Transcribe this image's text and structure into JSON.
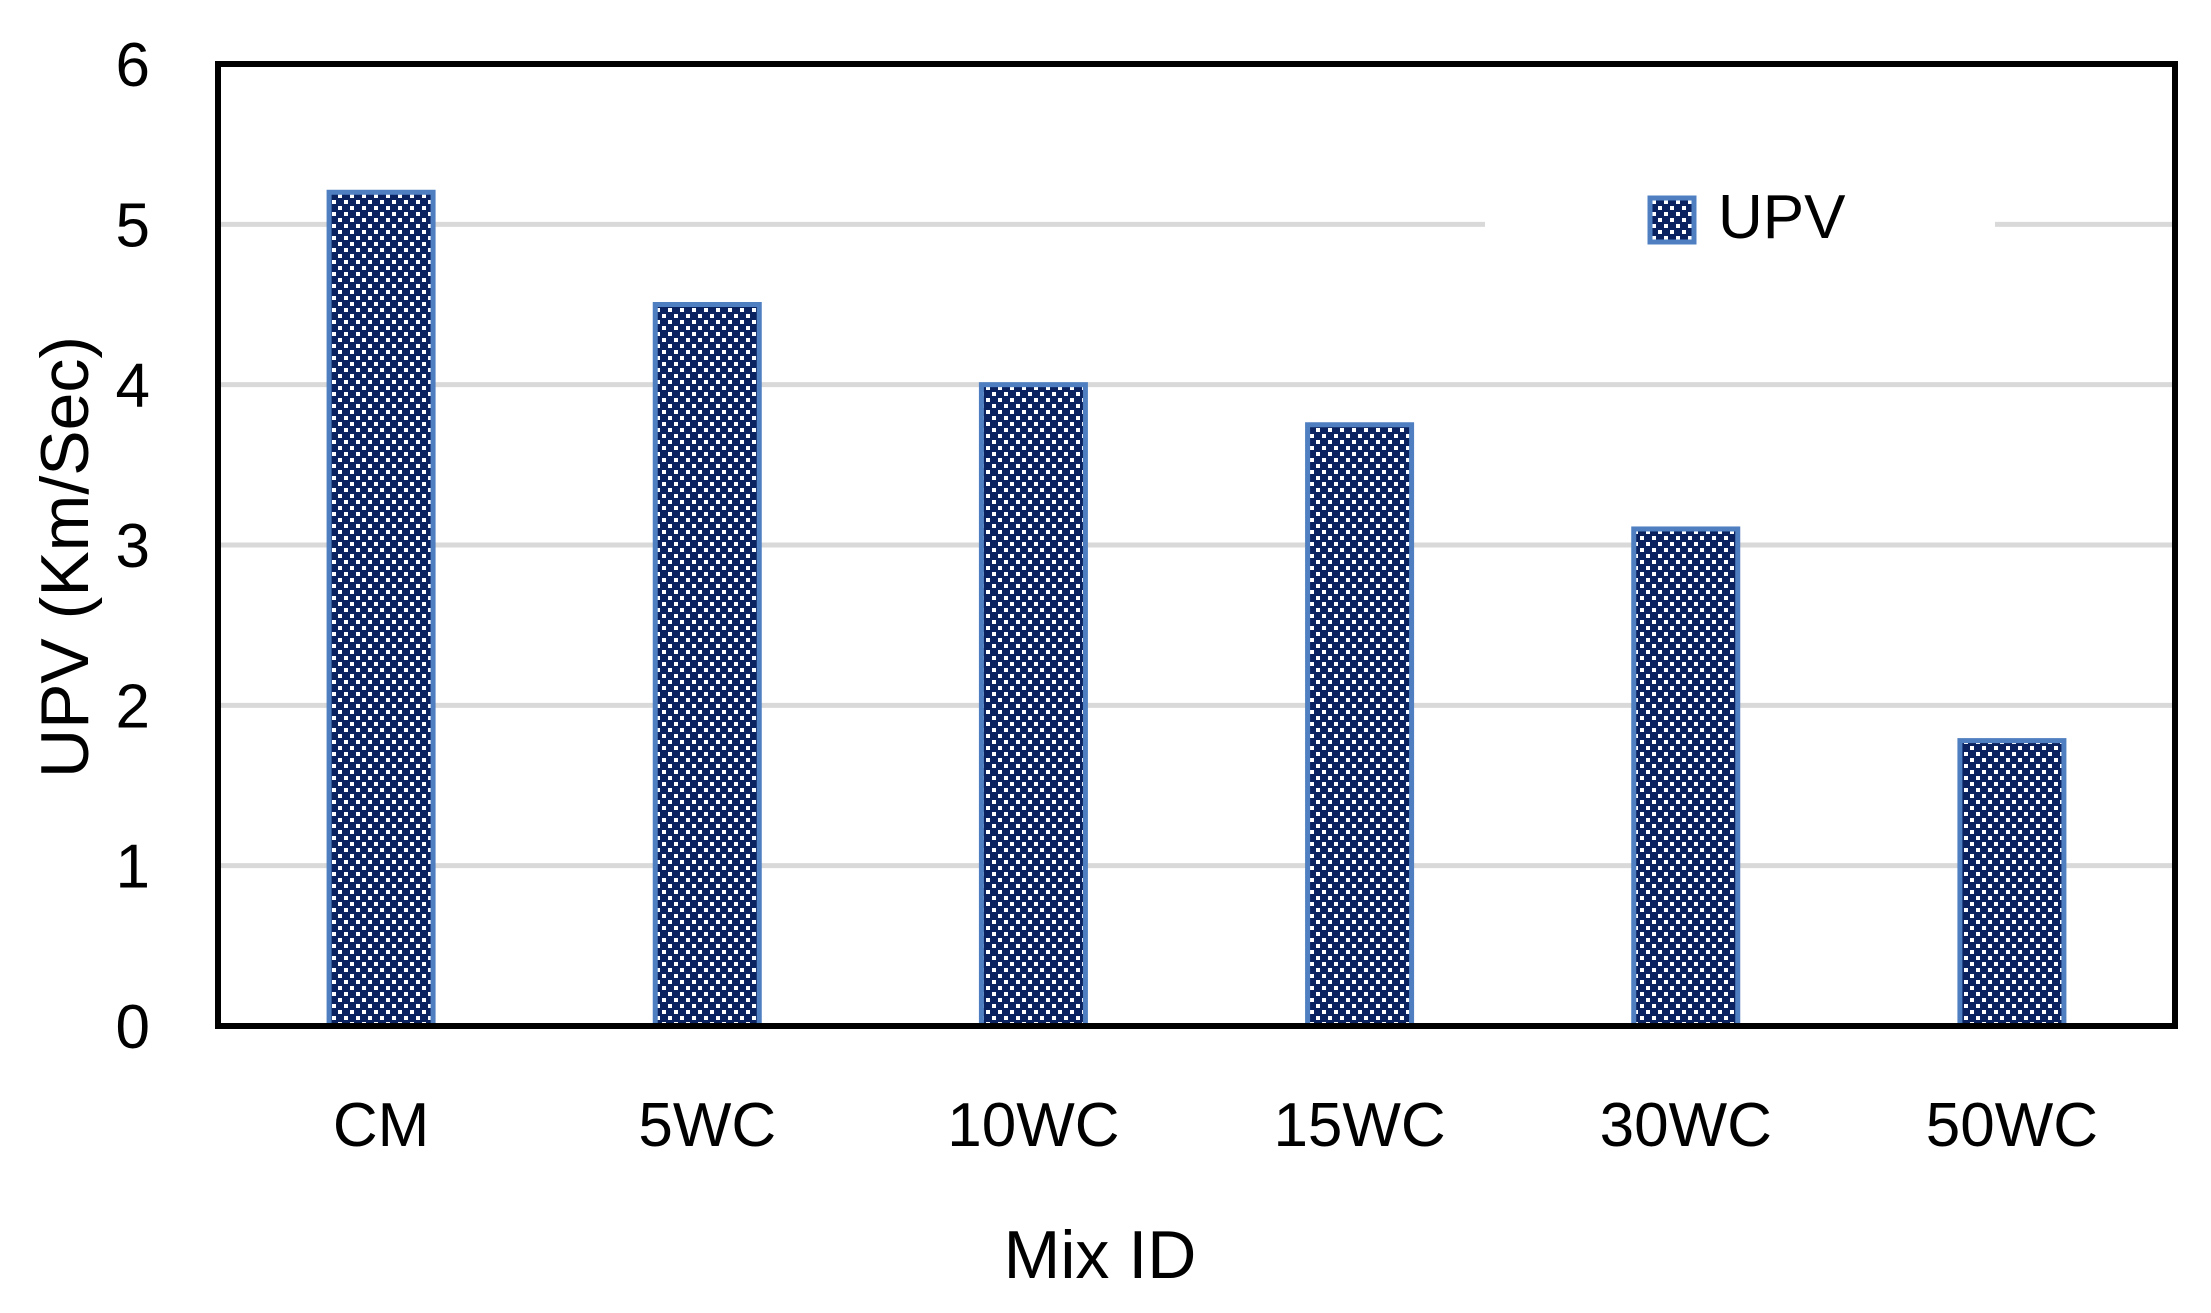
{
  "chart_data": {
    "type": "bar",
    "title": "",
    "xlabel": "Mix ID",
    "ylabel": "UPV (Km/Sec)",
    "categories": [
      "CM",
      "5WC",
      "10WC",
      "15WC",
      "30WC",
      "50WC"
    ],
    "series": [
      {
        "name": "UPV",
        "values": [
          5.2,
          4.5,
          4.0,
          3.75,
          3.1,
          1.78
        ]
      }
    ],
    "ylim": [
      0,
      6
    ],
    "yticks": [
      "0",
      "1",
      "2",
      "3",
      "4",
      "5",
      "6"
    ],
    "grid": true,
    "legend": {
      "placement": "top-right",
      "label": "UPV"
    },
    "colors": {
      "bar_fill": "#0b2260",
      "bar_pattern_dot": "#ffffff",
      "bar_border": "#4f7fc0",
      "gridline": "#d9d9d9",
      "axis_frame": "#000000"
    }
  }
}
